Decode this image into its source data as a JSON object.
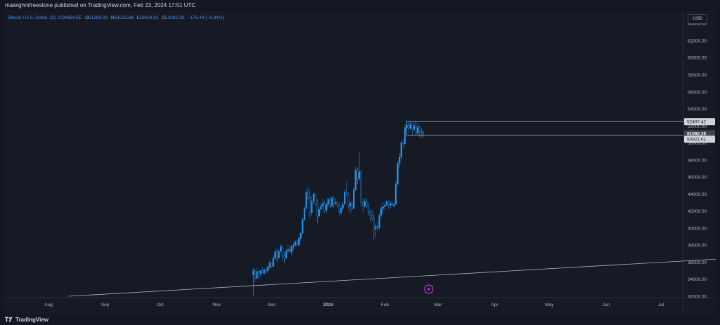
{
  "header": {
    "publisher": "maleighmfreestone published on TradingView.com, Feb 23, 2024 17:51 UTC"
  },
  "legend": {
    "symbol": "Bitcoin / U.S. Dollar, 1D, COINBASE",
    "open_label": "O",
    "open": "51260.29",
    "high_label": "H",
    "high": "51512.68",
    "low_label": "L",
    "low": "50619.81",
    "close_label": "C",
    "close": "51082.26",
    "change": "−176.44 (−0.34%)"
  },
  "currency": "USD",
  "footer": {
    "brand": "TradingView"
  },
  "colors": {
    "background": "#161a25",
    "candle": "#2196f3",
    "text": "#d1d4dc",
    "axis_text": "#b2b5be",
    "line": "#b2b5be"
  },
  "chart_data": {
    "type": "candlestick",
    "title": "Bitcoin / U.S. Dollar, 1D, COINBASE",
    "ylim": [
      32000,
      64800
    ],
    "y_ticks": [
      "64000.00",
      "62000.00",
      "60000.00",
      "58000.00",
      "56000.00",
      "54000.00",
      "52000.00",
      "50000.00",
      "48000.00",
      "46000.00",
      "44000.00",
      "42000.00",
      "40000.00",
      "38000.00",
      "36000.00",
      "34000.00",
      "32000.00"
    ],
    "x_ticks": [
      "Aug",
      "Sep",
      "Oct",
      "Nov",
      "Dec",
      "2024",
      "Feb",
      "Mar",
      "Apr",
      "May",
      "Jun",
      "Jul"
    ],
    "price_labels": [
      {
        "value": 52497.42,
        "text": "52497.42"
      },
      {
        "value": 51082.26,
        "text": "51082.26",
        "sub": "06:08:05",
        "current": true
      },
      {
        "value": 50921.61,
        "text": "50921.61"
      }
    ],
    "range_box": {
      "start": "2024-02-13",
      "end": "2024-03-13",
      "high": 52497.42,
      "low": 50921.61
    },
    "trendline": {
      "start_date": "2023-08-12",
      "start_value": 32000,
      "end_date": "2024-07-31",
      "end_value": 36350
    },
    "series": [
      {
        "values": [
          [
            34500,
            35300,
            32000,
            35000
          ],
          [
            35000,
            35200,
            33600,
            34100
          ],
          [
            34100,
            35300,
            34000,
            34900
          ],
          [
            34900,
            35000,
            34000,
            34700
          ],
          [
            34700,
            35100,
            34300,
            35000
          ],
          [
            35000,
            35400,
            34600,
            34700
          ],
          [
            34700,
            35300,
            34500,
            35100
          ],
          [
            35100,
            35300,
            34600,
            35000
          ],
          [
            35000,
            35600,
            34800,
            35400
          ],
          [
            35400,
            36200,
            35200,
            35900
          ],
          [
            35900,
            36000,
            35300,
            35500
          ],
          [
            35500,
            36800,
            35400,
            36500
          ],
          [
            36500,
            37500,
            36300,
            37200
          ],
          [
            37200,
            37600,
            36000,
            36500
          ],
          [
            36500,
            37500,
            36200,
            37300
          ],
          [
            37300,
            38100,
            37000,
            37800
          ],
          [
            37800,
            38000,
            36200,
            36800
          ],
          [
            36800,
            37200,
            35900,
            36500
          ],
          [
            36500,
            37500,
            36300,
            37300
          ],
          [
            37300,
            38000,
            37000,
            37500
          ],
          [
            37500,
            38000,
            37100,
            37200
          ],
          [
            37200,
            38000,
            36800,
            37800
          ],
          [
            37800,
            38300,
            37400,
            38000
          ],
          [
            38000,
            38600,
            37800,
            38400
          ],
          [
            38400,
            38600,
            37900,
            38000
          ],
          [
            38000,
            39000,
            37900,
            38800
          ],
          [
            38800,
            39600,
            38500,
            39400
          ],
          [
            39400,
            41200,
            39300,
            41000
          ],
          [
            41000,
            42600,
            40800,
            42300
          ],
          [
            42300,
            44600,
            42200,
            44200
          ],
          [
            44200,
            44800,
            43300,
            43600
          ],
          [
            43600,
            44400,
            41200,
            41800
          ],
          [
            41800,
            43800,
            41400,
            43200
          ],
          [
            43200,
            44200,
            42800,
            44000
          ],
          [
            44000,
            44100,
            42600,
            42800
          ],
          [
            42800,
            43400,
            40600,
            41400
          ],
          [
            41400,
            42500,
            41200,
            42200
          ],
          [
            42200,
            43000,
            41700,
            42600
          ],
          [
            42600,
            43400,
            42200,
            42900
          ],
          [
            42900,
            43200,
            41800,
            42100
          ],
          [
            42100,
            43000,
            41800,
            42800
          ],
          [
            42800,
            43600,
            42500,
            43400
          ],
          [
            43400,
            43600,
            42300,
            42600
          ],
          [
            42600,
            43800,
            42400,
            43500
          ],
          [
            43500,
            43800,
            42400,
            42900
          ],
          [
            42900,
            43500,
            42600,
            43000
          ],
          [
            43000,
            43200,
            42400,
            42700
          ],
          [
            42700,
            43000,
            41400,
            41800
          ],
          [
            41800,
            42600,
            41600,
            42300
          ],
          [
            42300,
            43100,
            42100,
            42800
          ],
          [
            42800,
            44500,
            42700,
            44200
          ],
          [
            44200,
            45500,
            43800,
            44100
          ],
          [
            44100,
            44200,
            42200,
            42600
          ],
          [
            42600,
            43200,
            41800,
            42900
          ],
          [
            42900,
            43200,
            42000,
            42300
          ],
          [
            42300,
            44800,
            42200,
            44500
          ],
          [
            44500,
            47200,
            44300,
            46800
          ],
          [
            46800,
            47100,
            45200,
            45800
          ],
          [
            45800,
            49000,
            45500,
            46600
          ],
          [
            46600,
            46800,
            42500,
            43000
          ],
          [
            43000,
            43500,
            41800,
            42600
          ],
          [
            42600,
            43400,
            42300,
            43100
          ],
          [
            43100,
            43500,
            42400,
            42700
          ],
          [
            42700,
            43000,
            41500,
            41900
          ],
          [
            41900,
            42300,
            40800,
            41500
          ],
          [
            41500,
            42100,
            40800,
            41100
          ],
          [
            41100,
            41600,
            38600,
            39900
          ],
          [
            39900,
            40500,
            38900,
            40200
          ],
          [
            40200,
            40800,
            39600,
            40000
          ],
          [
            40000,
            41800,
            39800,
            41500
          ],
          [
            41500,
            42600,
            41300,
            42300
          ],
          [
            42300,
            43000,
            41800,
            42500
          ],
          [
            42500,
            43100,
            42000,
            42700
          ],
          [
            42700,
            43300,
            42600,
            43100
          ],
          [
            43100,
            43200,
            42200,
            42700
          ],
          [
            42700,
            43200,
            42300,
            42900
          ],
          [
            42900,
            43200,
            42500,
            42600
          ],
          [
            42600,
            43000,
            42400,
            42800
          ],
          [
            42800,
            45500,
            42700,
            45200
          ],
          [
            45200,
            47900,
            45000,
            47600
          ],
          [
            47600,
            48800,
            47000,
            48300
          ],
          [
            48300,
            50300,
            48100,
            50000
          ],
          [
            50000,
            50400,
            49300,
            49900
          ],
          [
            49900,
            52200,
            49700,
            51800
          ],
          [
            51800,
            52800,
            51400,
            52100
          ],
          [
            52100,
            52500,
            51200,
            51700
          ],
          [
            51700,
            52600,
            51500,
            52200
          ],
          [
            52200,
            52300,
            50800,
            51600
          ],
          [
            51600,
            52400,
            51300,
            52000
          ],
          [
            52000,
            52500,
            50900,
            51100
          ],
          [
            51100,
            52400,
            51000,
            51800
          ],
          [
            51800,
            52100,
            50700,
            51300
          ],
          [
            51300,
            51700,
            50600,
            51260
          ],
          [
            51260,
            51512,
            50620,
            51082
          ]
        ]
      }
    ],
    "first_candle": "2023-11-21",
    "x_axis_days": {
      "Aug": "2023-08-01",
      "Sep": "2023-09-01",
      "Oct": "2023-10-01",
      "Nov": "2023-11-01",
      "Dec": "2023-12-01",
      "2024": "2024-01-01",
      "Feb": "2024-02-01",
      "Mar": "2024-03-01",
      "Apr": "2024-04-01",
      "May": "2024-05-01",
      "Jun": "2024-06-01",
      "Jul": "2024-07-01"
    }
  }
}
